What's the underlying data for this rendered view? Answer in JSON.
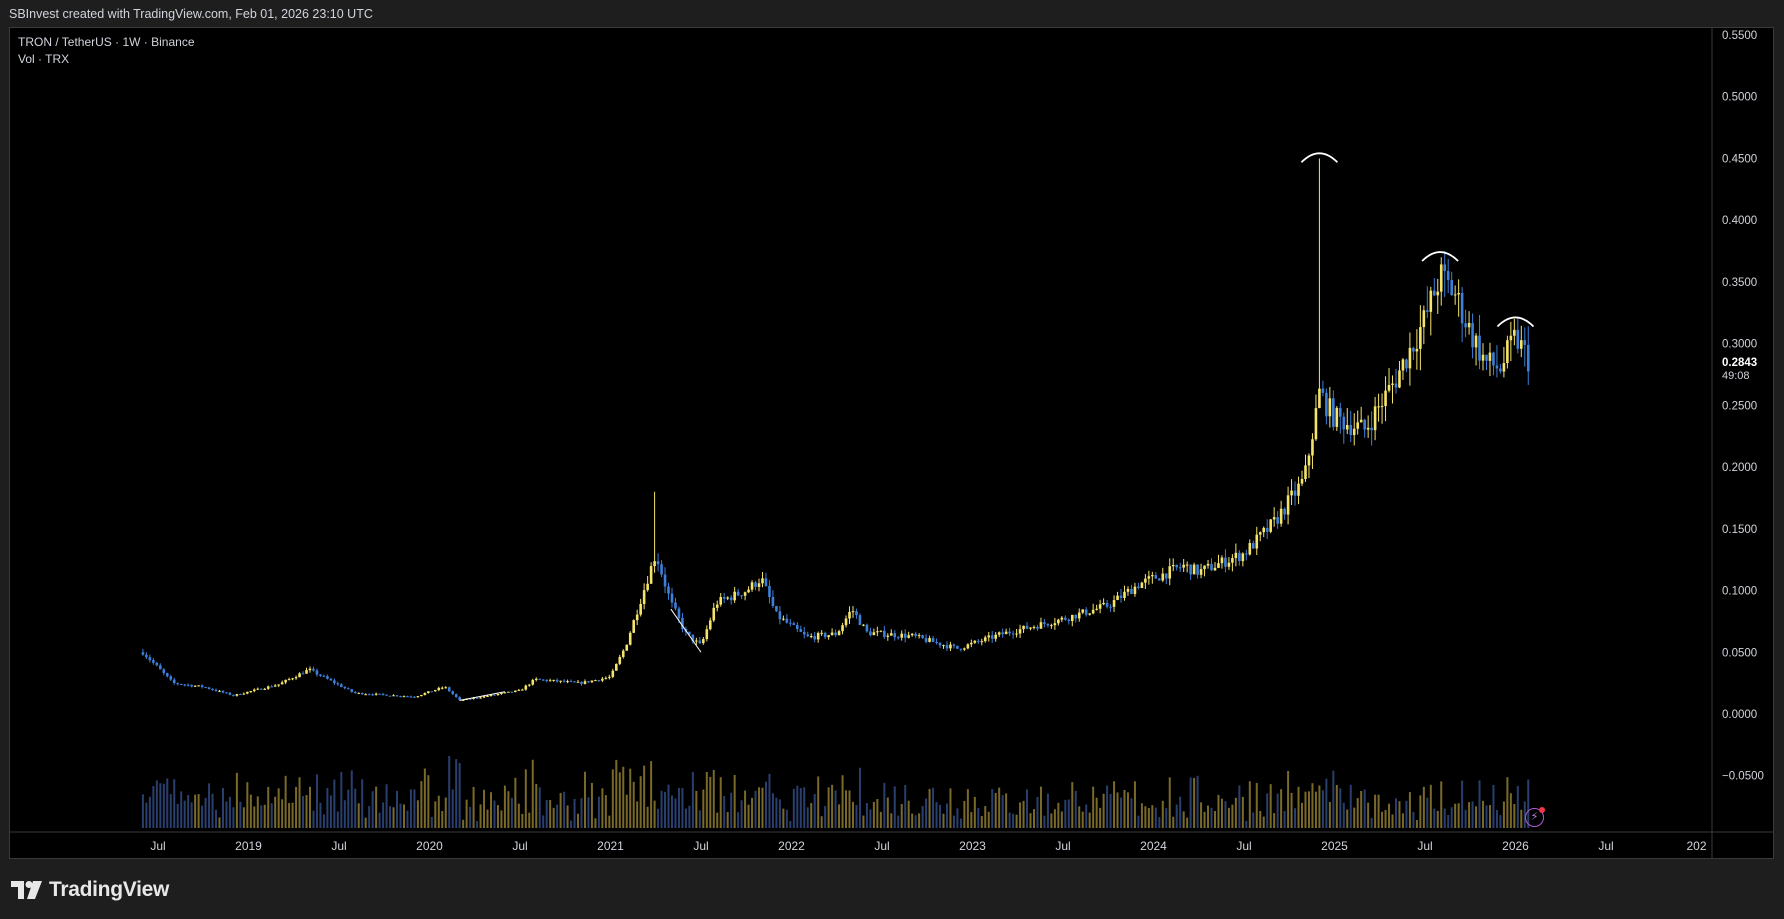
{
  "header": {
    "attribution": "SBInvest created with TradingView.com, Feb 01, 2026 23:10 UTC"
  },
  "legend": {
    "symbol_line": "TRON / TetherUS · 1W · Binance",
    "volume_line": "Vol · TRX"
  },
  "price_label": {
    "value": "0.2843",
    "countdown": "49:08"
  },
  "footer": {
    "brand": "TradingView",
    "logo_icon": "tradingview-logo-icon"
  },
  "colors": {
    "up": "#f5e46a",
    "down": "#3d7fd9",
    "background": "#000000",
    "vol_up": "#7a6a2a",
    "vol_down": "#2a3f6e",
    "annotation": "#ffffff"
  },
  "chart_data": {
    "type": "candlestick",
    "timeframe": "1W",
    "ylim": [
      -0.09,
      0.56
    ],
    "y_ticks": [
      "0.5500",
      "0.5000",
      "0.4500",
      "0.4000",
      "0.3500",
      "0.3000",
      "0.2500",
      "0.2000",
      "0.1500",
      "0.1000",
      "0.0500",
      "0.0000",
      "−0.0500"
    ],
    "x_ticks": [
      "Jul",
      "2019",
      "Jul",
      "2020",
      "Jul",
      "2021",
      "Jul",
      "2022",
      "Jul",
      "2023",
      "Jul",
      "2024",
      "Jul",
      "2025",
      "Jul",
      "2026",
      "Jul",
      "202"
    ],
    "price_anchors": [
      {
        "date": "2018-06",
        "price": 0.05
      },
      {
        "date": "2018-08",
        "price": 0.025
      },
      {
        "date": "2018-10",
        "price": 0.022
      },
      {
        "date": "2018-12",
        "price": 0.015
      },
      {
        "date": "2019-03",
        "price": 0.024
      },
      {
        "date": "2019-05",
        "price": 0.036
      },
      {
        "date": "2019-08",
        "price": 0.017
      },
      {
        "date": "2019-12",
        "price": 0.014
      },
      {
        "date": "2020-02",
        "price": 0.022
      },
      {
        "date": "2020-03",
        "price": 0.011
      },
      {
        "date": "2020-07",
        "price": 0.019
      },
      {
        "date": "2020-08",
        "price": 0.028
      },
      {
        "date": "2020-11",
        "price": 0.025
      },
      {
        "date": "2021-01",
        "price": 0.03
      },
      {
        "date": "2021-02",
        "price": 0.055
      },
      {
        "date": "2021-04",
        "price": 0.13
      },
      {
        "date": "2021-05",
        "price": 0.09
      },
      {
        "date": "2021-06",
        "price": 0.065
      },
      {
        "date": "2021-07",
        "price": 0.055
      },
      {
        "date": "2021-08",
        "price": 0.09
      },
      {
        "date": "2021-10",
        "price": 0.1
      },
      {
        "date": "2021-11",
        "price": 0.11
      },
      {
        "date": "2021-12",
        "price": 0.08
      },
      {
        "date": "2022-02",
        "price": 0.062
      },
      {
        "date": "2022-04",
        "price": 0.065
      },
      {
        "date": "2022-05",
        "price": 0.085
      },
      {
        "date": "2022-06",
        "price": 0.066
      },
      {
        "date": "2022-09",
        "price": 0.063
      },
      {
        "date": "2022-12",
        "price": 0.053
      },
      {
        "date": "2023-03",
        "price": 0.065
      },
      {
        "date": "2023-07",
        "price": 0.077
      },
      {
        "date": "2023-10",
        "price": 0.088
      },
      {
        "date": "2023-12",
        "price": 0.105
      },
      {
        "date": "2024-03",
        "price": 0.12
      },
      {
        "date": "2024-04",
        "price": 0.115
      },
      {
        "date": "2024-07",
        "price": 0.13
      },
      {
        "date": "2024-09",
        "price": 0.155
      },
      {
        "date": "2024-11",
        "price": 0.19
      },
      {
        "date": "2024-12",
        "price": 0.26
      },
      {
        "date": "2025-01",
        "price": 0.24
      },
      {
        "date": "2025-03",
        "price": 0.23
      },
      {
        "date": "2025-05",
        "price": 0.27
      },
      {
        "date": "2025-07",
        "price": 0.32
      },
      {
        "date": "2025-08",
        "price": 0.355
      },
      {
        "date": "2025-09",
        "price": 0.34
      },
      {
        "date": "2025-10",
        "price": 0.31
      },
      {
        "date": "2025-11",
        "price": 0.285
      },
      {
        "date": "2025-12",
        "price": 0.28
      },
      {
        "date": "2026-01",
        "price": 0.305
      },
      {
        "date": "2026-02",
        "price": 0.2843
      }
    ],
    "spikes": [
      {
        "date": "2021-04",
        "high": 0.18
      },
      {
        "date": "2024-12",
        "high": 0.45
      },
      {
        "date": "2025-08",
        "high": 0.37
      },
      {
        "date": "2026-01",
        "high": 0.32
      }
    ],
    "annotations": [
      {
        "type": "arc",
        "date": "2024-12",
        "price": 0.455
      },
      {
        "type": "arc",
        "date": "2025-08",
        "price": 0.375
      },
      {
        "type": "arc",
        "date": "2026-01",
        "price": 0.322
      },
      {
        "type": "trendline",
        "from": {
          "date": "2021-05",
          "price": 0.085
        },
        "to": {
          "date": "2021-07",
          "price": 0.05
        }
      },
      {
        "type": "trendline",
        "from": {
          "date": "2020-03",
          "price": 0.011
        },
        "to": {
          "date": "2020-06",
          "price": 0.018
        }
      }
    ]
  }
}
